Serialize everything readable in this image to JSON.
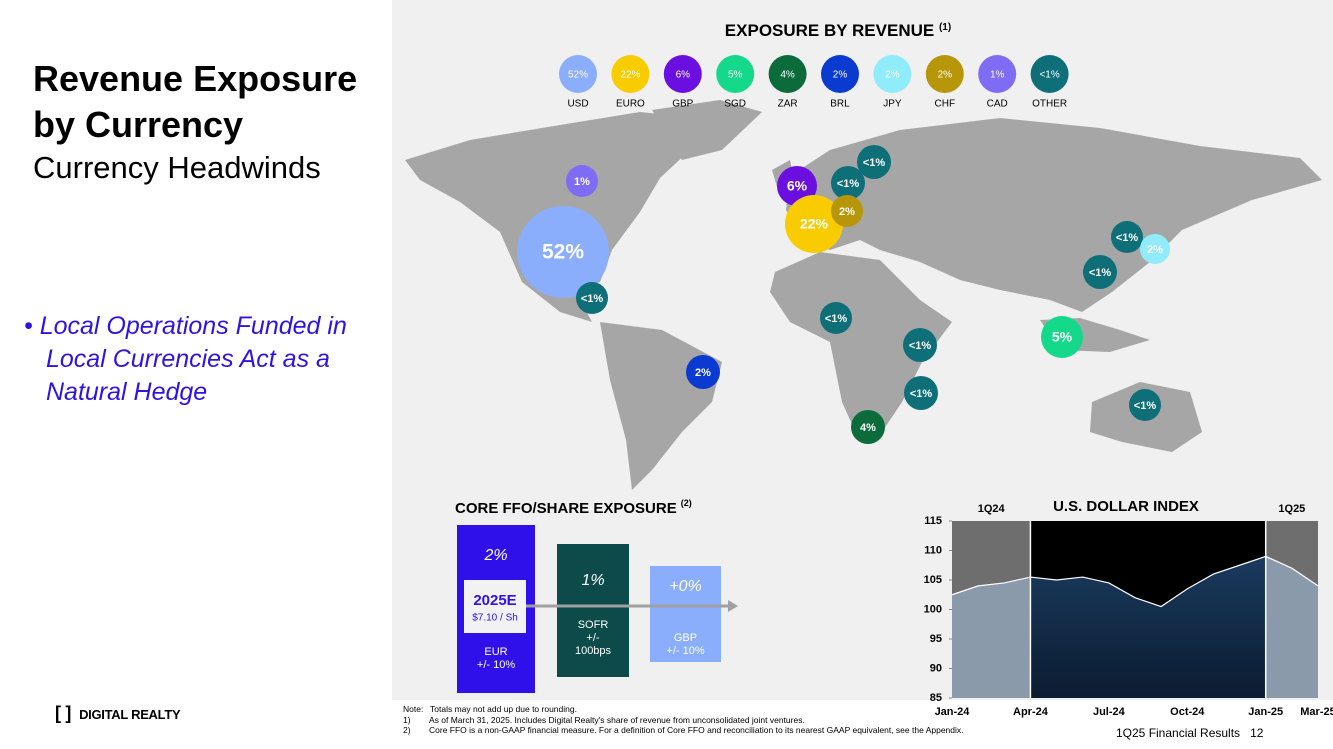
{
  "title_line1": "Revenue Exposure",
  "title_line2": "by Currency",
  "subtitle": "Currency Headwinds",
  "bullet": "Local Operations Funded in Local Currencies Act as a Natural Hedge",
  "logo": "DIGITAL REALTY",
  "revenue": {
    "title": "EXPOSURE BY REVENUE",
    "note_ref": "(1)",
    "legend": [
      {
        "value": "52%",
        "label": "USD",
        "color": "#8aaefc"
      },
      {
        "value": "22%",
        "label": "EURO",
        "color": "#f8cc00"
      },
      {
        "value": "6%",
        "label": "GBP",
        "color": "#6a0fe0"
      },
      {
        "value": "5%",
        "label": "SGD",
        "color": "#14d98a"
      },
      {
        "value": "4%",
        "label": "ZAR",
        "color": "#0b6b3a"
      },
      {
        "value": "2%",
        "label": "BRL",
        "color": "#0a3ad0"
      },
      {
        "value": "2%",
        "label": "JPY",
        "color": "#90ecfa"
      },
      {
        "value": "2%",
        "label": "CHF",
        "color": "#b8960a"
      },
      {
        "value": "1%",
        "label": "CAD",
        "color": "#7f6cf5"
      },
      {
        "value": "<1%",
        "label": "OTHER",
        "color": "#0e6f78"
      }
    ],
    "map": [
      "1%",
      "52%",
      "<1%",
      "2%",
      "6%",
      "22%",
      "<1%",
      "<1%",
      "2%",
      "<1%",
      "<1%",
      "<1%",
      "4%",
      "<1%",
      "2%",
      "<1%",
      "5%",
      "<1%"
    ]
  },
  "ffo": {
    "title": "CORE FFO/SHARE EXPOSURE",
    "note_ref": "(2)",
    "center": "2025E",
    "center_sub": "$7.10 / Sh",
    "bars": [
      {
        "pct": "2%",
        "lines": [
          "EUR",
          "+/- 10%"
        ]
      },
      {
        "pct": "1%",
        "lines": [
          "SOFR",
          "+/-",
          "100bps"
        ]
      },
      {
        "pct": "+0%",
        "lines": [
          "GBP",
          "+/- 10%"
        ]
      }
    ]
  },
  "notes": [
    {
      "marker": "Note:",
      "text": "Totals may not add up due to rounding."
    },
    {
      "marker": "1)",
      "text": "As of March 31, 2025.  Includes Digital Realty's share of revenue from unconsolidated joint ventures."
    },
    {
      "marker": "2)",
      "text": "Core FFO is a non-GAAP financial measure.  For a definition of Core FFO and reconciliation to its nearest GAAP equivalent, see the Appendix."
    }
  ],
  "footer": "1Q25 Financial Results",
  "page": "12",
  "chart_data": {
    "type": "area",
    "title": "U.S. DOLLAR  INDEX",
    "annotations": [
      "1Q24",
      "1Q25"
    ],
    "categories": [
      "Jan-24",
      null,
      null,
      "Apr-24",
      null,
      null,
      "Jul-24",
      null,
      null,
      "Oct-24",
      null,
      null,
      "Jan-25",
      null,
      "Mar-25"
    ],
    "values": [
      102.5,
      104,
      104.5,
      105.5,
      105,
      105.5,
      104.5,
      102,
      100.5,
      103.5,
      106,
      107.5,
      109,
      107,
      104
    ],
    "color": "#ffffff",
    "ylim": [
      85,
      115
    ],
    "yticks": [
      85,
      90,
      95,
      100,
      105,
      110,
      115
    ]
  }
}
